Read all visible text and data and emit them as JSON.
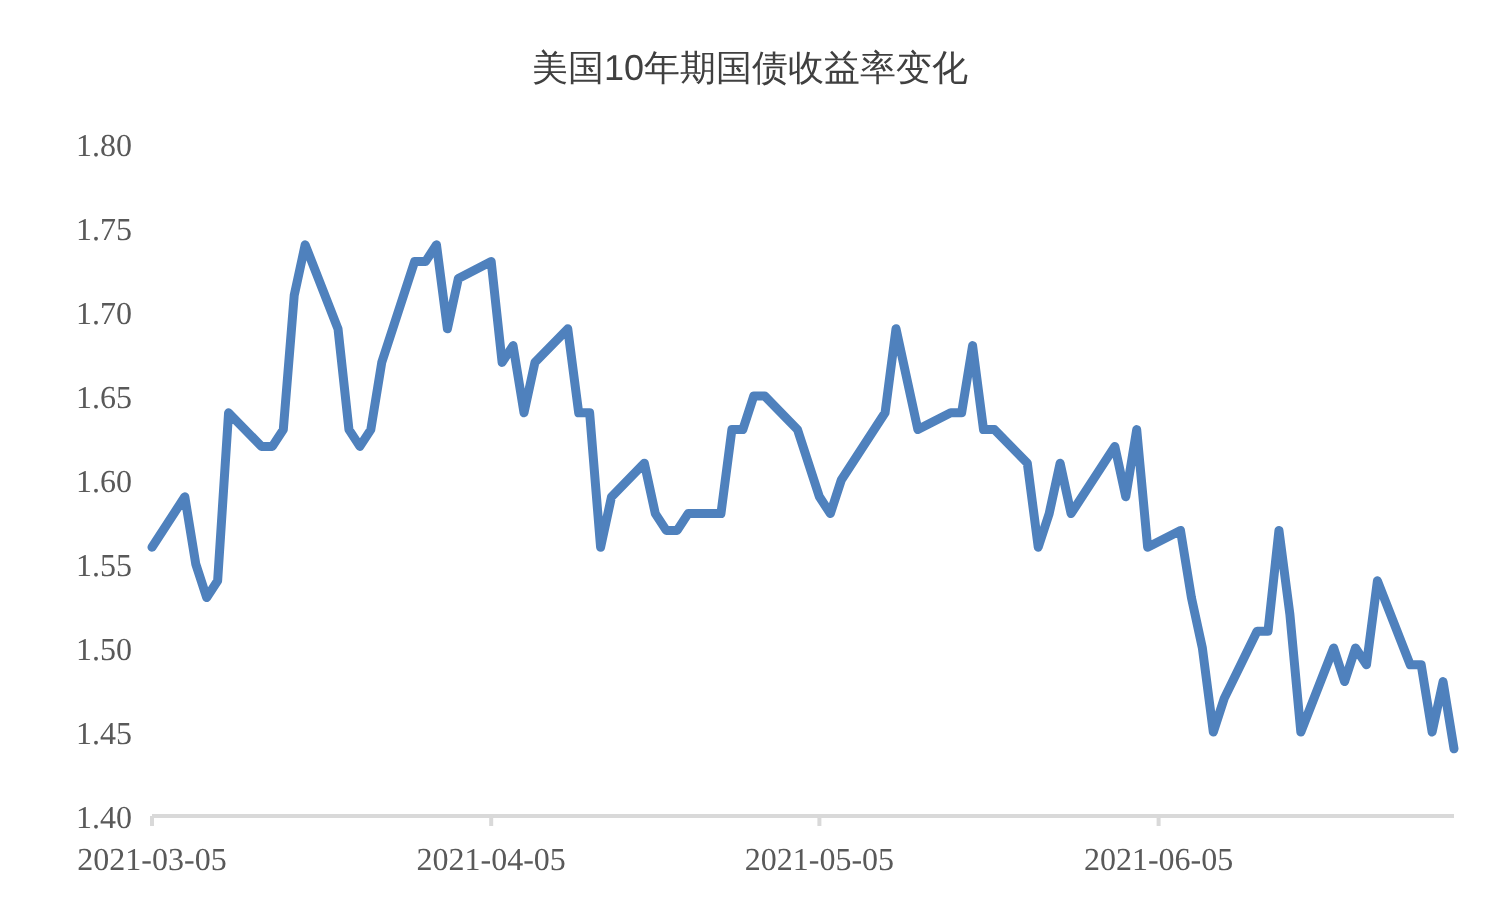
{
  "chart_data": {
    "type": "line",
    "title": "美国10年期国债收益率变化",
    "x": [
      "2021-03-05",
      "2021-03-08",
      "2021-03-09",
      "2021-03-10",
      "2021-03-11",
      "2021-03-12",
      "2021-03-15",
      "2021-03-16",
      "2021-03-17",
      "2021-03-18",
      "2021-03-19",
      "2021-03-22",
      "2021-03-23",
      "2021-03-24",
      "2021-03-25",
      "2021-03-26",
      "2021-03-29",
      "2021-03-30",
      "2021-03-31",
      "2021-04-01",
      "2021-04-02",
      "2021-04-05",
      "2021-04-06",
      "2021-04-07",
      "2021-04-08",
      "2021-04-09",
      "2021-04-12",
      "2021-04-13",
      "2021-04-14",
      "2021-04-15",
      "2021-04-16",
      "2021-04-19",
      "2021-04-20",
      "2021-04-21",
      "2021-04-22",
      "2021-04-23",
      "2021-04-26",
      "2021-04-27",
      "2021-04-28",
      "2021-04-29",
      "2021-04-30",
      "2021-05-03",
      "2021-05-05",
      "2021-05-06",
      "2021-05-07",
      "2021-05-11",
      "2021-05-12",
      "2021-05-14",
      "2021-05-17",
      "2021-05-18",
      "2021-05-19",
      "2021-05-20",
      "2021-05-21",
      "2021-05-24",
      "2021-05-25",
      "2021-05-26",
      "2021-05-27",
      "2021-05-28",
      "2021-06-01",
      "2021-06-02",
      "2021-06-03",
      "2021-06-04",
      "2021-06-07",
      "2021-06-08",
      "2021-06-09",
      "2021-06-10",
      "2021-06-11",
      "2021-06-14",
      "2021-06-15",
      "2021-06-16",
      "2021-06-17",
      "2021-06-18",
      "2021-06-21",
      "2021-06-22",
      "2021-06-23",
      "2021-06-24",
      "2021-06-25",
      "2021-06-28",
      "2021-06-29",
      "2021-06-30",
      "2021-07-01",
      "2021-07-02"
    ],
    "series": [
      {
        "color": "#4f81bd",
        "values": [
          1.56,
          1.59,
          1.55,
          1.53,
          1.54,
          1.64,
          1.62,
          1.62,
          1.63,
          1.71,
          1.74,
          1.69,
          1.63,
          1.62,
          1.63,
          1.67,
          1.73,
          1.73,
          1.74,
          1.69,
          1.72,
          1.73,
          1.67,
          1.68,
          1.64,
          1.67,
          1.69,
          1.64,
          1.64,
          1.56,
          1.59,
          1.61,
          1.58,
          1.57,
          1.57,
          1.58,
          1.58,
          1.63,
          1.63,
          1.65,
          1.65,
          1.63,
          1.59,
          1.58,
          1.6,
          1.64,
          1.69,
          1.63,
          1.64,
          1.64,
          1.68,
          1.63,
          1.63,
          1.61,
          1.56,
          1.58,
          1.61,
          1.58,
          1.62,
          1.59,
          1.63,
          1.56,
          1.57,
          1.53,
          1.5,
          1.45,
          1.47,
          1.51,
          1.51,
          1.57,
          1.52,
          1.45,
          1.5,
          1.48,
          1.5,
          1.49,
          1.54,
          1.49,
          1.49,
          1.45,
          1.48,
          1.44
        ]
      }
    ],
    "xlim": [
      "2021-03-05",
      "2021-07-02"
    ],
    "xticks": [
      "2021-03-05",
      "2021-04-05",
      "2021-05-05",
      "2021-06-05"
    ],
    "ylim": [
      1.4,
      1.8
    ],
    "yticks": [
      {
        "value": 1.4,
        "label": "1.40"
      },
      {
        "value": 1.45,
        "label": "1.45"
      },
      {
        "value": 1.5,
        "label": "1.50"
      },
      {
        "value": 1.55,
        "label": "1.55"
      },
      {
        "value": 1.6,
        "label": "1.60"
      },
      {
        "value": 1.65,
        "label": "1.65"
      },
      {
        "value": 1.7,
        "label": "1.70"
      },
      {
        "value": 1.75,
        "label": "1.75"
      },
      {
        "value": 1.8,
        "label": "1.80"
      }
    ],
    "marker": "none",
    "line_style": "solid"
  }
}
